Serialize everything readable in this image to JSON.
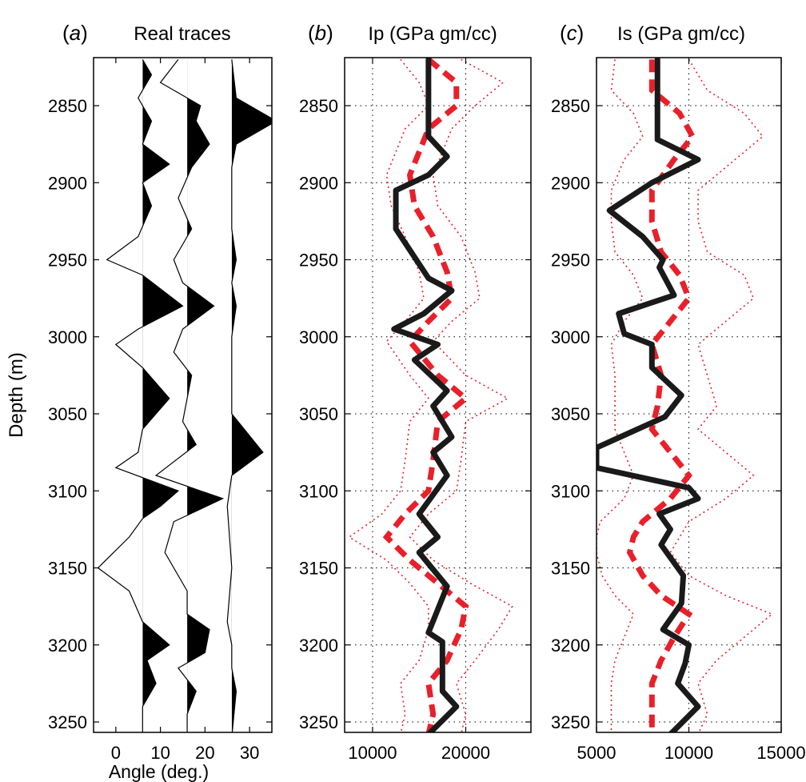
{
  "chart_data": [
    {
      "panel_label": "(a)",
      "title": "Real traces",
      "type": "wiggle",
      "xlabel": "Angle (deg.)",
      "ylabel": "Depth (m)",
      "xlim": [
        -5,
        35
      ],
      "ylim": [
        3260,
        2820
      ],
      "x_ticks": [
        "0",
        "10",
        "20",
        "30"
      ],
      "y_ticks": [
        "2850",
        "2900",
        "2950",
        "3000",
        "3050",
        "3100",
        "3150",
        "3200",
        "3250"
      ],
      "series": [
        {
          "baseline": 6,
          "depth": [
            2820,
            2830,
            2845,
            2860,
            2875,
            2888,
            2900,
            2915,
            2935,
            2950,
            2960,
            2980,
            2995,
            3005,
            3020,
            3040,
            3060,
            3075,
            3085,
            3100,
            3110,
            3118,
            3130,
            3150,
            3165,
            3185,
            3200,
            3210,
            3225,
            3240,
            3260
          ],
          "value": [
            6,
            8,
            5,
            8,
            6,
            12,
            6,
            8,
            5,
            -2,
            6,
            15,
            5,
            0,
            6,
            12,
            6,
            5,
            0,
            14,
            10,
            6,
            3,
            -4,
            3,
            6,
            12,
            7,
            9,
            6,
            6
          ]
        },
        {
          "baseline": 16,
          "depth": [
            2820,
            2835,
            2850,
            2860,
            2875,
            2890,
            2910,
            2930,
            2950,
            2965,
            2980,
            2995,
            3010,
            3025,
            3040,
            3055,
            3070,
            3090,
            3105,
            3120,
            3140,
            3165,
            3180,
            3190,
            3205,
            3215,
            3230,
            3245,
            3260
          ],
          "value": [
            14,
            10,
            19,
            18,
            21,
            17,
            14,
            17,
            13,
            15,
            22,
            15,
            13,
            17,
            16,
            15,
            18,
            9,
            24,
            13,
            11,
            16,
            16,
            21,
            20,
            14,
            18,
            16,
            16
          ]
        },
        {
          "baseline": 26,
          "depth": [
            2820,
            2845,
            2860,
            2875,
            2890,
            2910,
            2930,
            2950,
            2965,
            2980,
            3000,
            3020,
            3050,
            3075,
            3090,
            3110,
            3150,
            3185,
            3200,
            3215,
            3230,
            3260
          ],
          "value": [
            26,
            27,
            36,
            27,
            26,
            26,
            26,
            27,
            26,
            27,
            26,
            26,
            26,
            33,
            26,
            25,
            26,
            25,
            26,
            26,
            27,
            26
          ]
        }
      ]
    },
    {
      "panel_label": "(b)",
      "title": "Ip (GPa gm/cc)",
      "type": "line",
      "xlim": [
        7000,
        27000
      ],
      "ylim": [
        3260,
        2820
      ],
      "x_ticks": [
        "10000",
        "20000"
      ],
      "y_ticks": [
        "2850",
        "2900",
        "2950",
        "3000",
        "3050",
        "3100",
        "3150",
        "3200",
        "3250"
      ],
      "grid": true,
      "series": [
        {
          "style": "thick-black",
          "depth": [
            2820,
            2870,
            2883,
            2895,
            2905,
            2930,
            2962,
            2970,
            2985,
            2995,
            3005,
            3015,
            3035,
            3045,
            3065,
            3075,
            3090,
            3115,
            3130,
            3140,
            3162,
            3192,
            3198,
            3230,
            3240,
            3258
          ],
          "value": [
            16000,
            16000,
            18000,
            16000,
            12500,
            12500,
            16000,
            18500,
            15500,
            12300,
            17000,
            14500,
            18000,
            16500,
            18500,
            16500,
            18000,
            15000,
            17000,
            15000,
            18000,
            16000,
            17500,
            17500,
            19000,
            16000
          ]
        },
        {
          "style": "dashed-red",
          "depth": [
            2820,
            2835,
            2850,
            2865,
            2880,
            2895,
            2915,
            2935,
            2958,
            2975,
            2990,
            3003,
            3025,
            3040,
            3055,
            3080,
            3100,
            3115,
            3130,
            3145,
            3160,
            3175,
            3190,
            3210,
            3225,
            3245,
            3258
          ],
          "value": [
            16000,
            19000,
            19000,
            16000,
            15000,
            14000,
            14500,
            16500,
            18000,
            18500,
            16000,
            14000,
            17000,
            20000,
            17000,
            16500,
            16000,
            13500,
            11500,
            14000,
            17000,
            20000,
            19500,
            18000,
            16000,
            16500,
            16000
          ]
        },
        {
          "style": "dotted-red",
          "depth": [
            2820,
            2835,
            2850,
            2865,
            2880,
            2895,
            2915,
            2935,
            2958,
            2975,
            2990,
            3003,
            3025,
            3040,
            3055,
            3080,
            3100,
            3115,
            3130,
            3145,
            3160,
            3175,
            3190,
            3210,
            3225,
            3245,
            3258
          ],
          "value": [
            19500,
            24000,
            21000,
            18500,
            17500,
            16500,
            17000,
            19500,
            21000,
            21500,
            18500,
            16500,
            20000,
            24500,
            20000,
            19500,
            19000,
            16000,
            14000,
            16500,
            20500,
            25000,
            23500,
            21000,
            19000,
            20000,
            19500
          ]
        },
        {
          "style": "dotted-red",
          "depth": [
            2820,
            2835,
            2850,
            2865,
            2880,
            2895,
            2915,
            2935,
            2958,
            2975,
            2990,
            3003,
            3025,
            3040,
            3055,
            3080,
            3100,
            3115,
            3130,
            3145,
            3160,
            3175,
            3190,
            3210,
            3225,
            3245,
            3258
          ],
          "value": [
            13000,
            15000,
            16000,
            13500,
            12500,
            11500,
            12000,
            13500,
            15000,
            15500,
            13500,
            11500,
            14000,
            16000,
            14000,
            13500,
            13000,
            11000,
            7500,
            11500,
            14000,
            16000,
            16000,
            15000,
            13000,
            13500,
            13000
          ]
        }
      ]
    },
    {
      "panel_label": "(c)",
      "title": "Is (GPa gm/cc)",
      "type": "line",
      "xlim": [
        5000,
        15000
      ],
      "ylim": [
        3260,
        2820
      ],
      "x_ticks": [
        "5000",
        "10000",
        "15000"
      ],
      "y_ticks": [
        "2850",
        "2900",
        "2950",
        "3000",
        "3050",
        "3100",
        "3150",
        "3200",
        "3250"
      ],
      "grid": true,
      "series": [
        {
          "style": "thick-black",
          "depth": [
            2820,
            2872,
            2885,
            2900,
            2918,
            2935,
            2950,
            2955,
            2973,
            2985,
            2998,
            3005,
            3020,
            3038,
            3052,
            3072,
            3085,
            3098,
            3105,
            3115,
            3125,
            3135,
            3155,
            3173,
            3190,
            3200,
            3212,
            3225,
            3240,
            3258
          ],
          "value": [
            8300,
            8300,
            10500,
            8000,
            5700,
            7500,
            8600,
            8400,
            9200,
            6200,
            6500,
            8000,
            8000,
            9600,
            8700,
            5000,
            5000,
            10000,
            10500,
            8400,
            9000,
            8500,
            9700,
            9600,
            8600,
            10000,
            9800,
            9400,
            10500,
            9000
          ]
        },
        {
          "style": "dashed-red",
          "depth": [
            2820,
            2840,
            2855,
            2870,
            2885,
            2905,
            2925,
            2945,
            2960,
            2975,
            2990,
            3005,
            3025,
            3045,
            3060,
            3075,
            3090,
            3105,
            3120,
            3130,
            3140,
            3155,
            3168,
            3180,
            3195,
            3210,
            3225,
            3245,
            3258
          ],
          "value": [
            8000,
            8000,
            9500,
            10200,
            9200,
            8000,
            8000,
            8500,
            9500,
            10000,
            9000,
            8000,
            8500,
            8300,
            8000,
            9000,
            10000,
            9000,
            7500,
            7000,
            6800,
            7500,
            8500,
            10000,
            9200,
            8500,
            8000,
            8000,
            8000
          ]
        },
        {
          "style": "dotted-red",
          "depth": [
            2820,
            2840,
            2855,
            2870,
            2885,
            2905,
            2925,
            2945,
            2960,
            2975,
            2990,
            3005,
            3025,
            3045,
            3060,
            3075,
            3090,
            3105,
            3120,
            3130,
            3140,
            3155,
            3168,
            3180,
            3195,
            3210,
            3225,
            3245,
            3258
          ],
          "value": [
            10000,
            11000,
            13000,
            14000,
            12500,
            10500,
            10500,
            11000,
            13000,
            13500,
            12000,
            10500,
            11000,
            11500,
            10500,
            12000,
            13500,
            12000,
            10000,
            9500,
            9000,
            10000,
            12000,
            14500,
            13000,
            11500,
            10500,
            11000,
            10500
          ]
        },
        {
          "style": "dotted-red",
          "depth": [
            2820,
            2840,
            2855,
            2870,
            2885,
            2905,
            2925,
            2945,
            2960,
            2975,
            2990,
            3005,
            3025,
            3045,
            3060,
            3075,
            3090,
            3105,
            3120,
            3130,
            3140,
            3155,
            3168,
            3180,
            3195,
            3210,
            3225,
            3245,
            3258
          ],
          "value": [
            6000,
            5800,
            7000,
            7500,
            6500,
            5800,
            5800,
            6000,
            7000,
            7500,
            6500,
            5800,
            6000,
            6000,
            6000,
            6500,
            7000,
            6500,
            5200,
            5000,
            5000,
            5300,
            6000,
            7000,
            6500,
            6000,
            5800,
            5800,
            5800
          ]
        }
      ]
    }
  ]
}
